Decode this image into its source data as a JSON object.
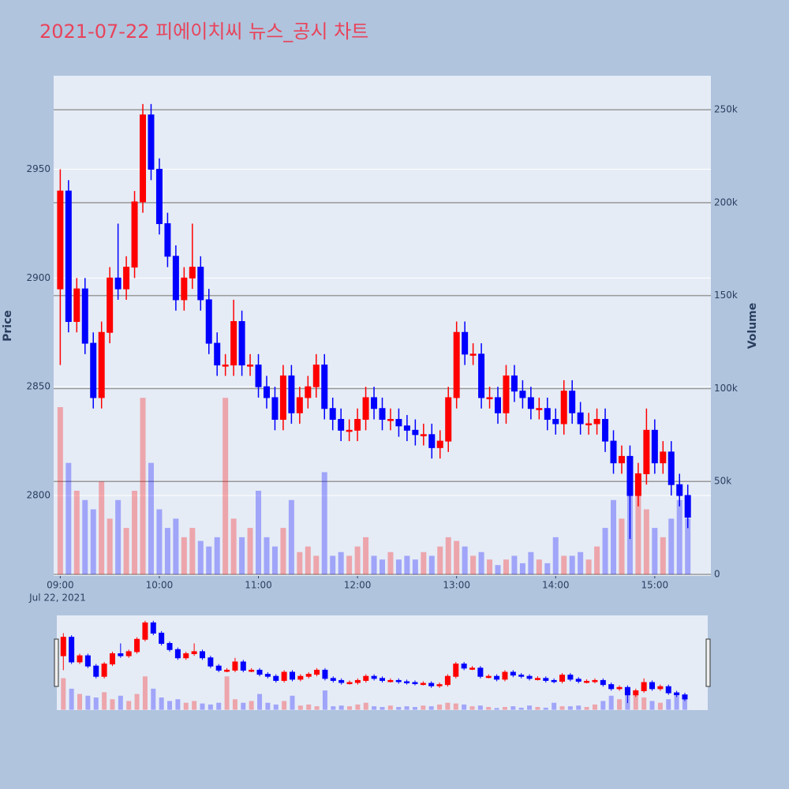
{
  "chart_data": {
    "type": "candlestick",
    "title": "2021-07-22 피에이치씨 뉴스_공시 차트",
    "y_label": "Price",
    "y2_label": "Volume",
    "x_date_label": "Jul 22, 2021",
    "increasing_color": "#ff0000",
    "decreasing_color": "#0000ff",
    "xlim": [
      "2021-07-22 08:56",
      "2021-07-22 15:34"
    ],
    "xticks": [
      {
        "value": "2021-07-22 09:00",
        "label": "09:00"
      },
      {
        "value": "2021-07-22 10:00",
        "label": "10:00"
      },
      {
        "value": "2021-07-22 11:00",
        "label": "11:00"
      },
      {
        "value": "2021-07-22 12:00",
        "label": "12:00"
      },
      {
        "value": "2021-07-22 13:00",
        "label": "13:00"
      },
      {
        "value": "2021-07-22 14:00",
        "label": "14:00"
      },
      {
        "value": "2021-07-22 15:00",
        "label": "15:00"
      }
    ],
    "ylim": [
      2763,
      2993
    ],
    "yticks": [
      2800,
      2850,
      2900,
      2950
    ],
    "y2lim": [
      -850,
      268300
    ],
    "y2ticks": [
      0,
      {
        "value": 50000,
        "label": "50k"
      },
      {
        "value": 100000,
        "label": "100k"
      },
      {
        "value": 150000,
        "label": "150k"
      },
      {
        "value": 200000,
        "label": "200k"
      },
      {
        "value": 250000,
        "label": "250k"
      }
    ],
    "x": [
      "2021-07-22 09:00",
      "2021-07-22 09:05",
      "2021-07-22 09:10",
      "2021-07-22 09:15",
      "2021-07-22 09:20",
      "2021-07-22 09:25",
      "2021-07-22 09:30",
      "2021-07-22 09:35",
      "2021-07-22 09:40",
      "2021-07-22 09:45",
      "2021-07-22 09:50",
      "2021-07-22 09:55",
      "2021-07-22 10:00",
      "2021-07-22 10:05",
      "2021-07-22 10:10",
      "2021-07-22 10:15",
      "2021-07-22 10:20",
      "2021-07-22 10:25",
      "2021-07-22 10:30",
      "2021-07-22 10:35",
      "2021-07-22 10:40",
      "2021-07-22 10:45",
      "2021-07-22 10:50",
      "2021-07-22 10:55",
      "2021-07-22 11:00",
      "2021-07-22 11:05",
      "2021-07-22 11:10",
      "2021-07-22 11:15",
      "2021-07-22 11:20",
      "2021-07-22 11:25",
      "2021-07-22 11:30",
      "2021-07-22 11:35",
      "2021-07-22 11:40",
      "2021-07-22 11:45",
      "2021-07-22 11:50",
      "2021-07-22 11:55",
      "2021-07-22 12:00",
      "2021-07-22 12:05",
      "2021-07-22 12:10",
      "2021-07-22 12:15",
      "2021-07-22 12:20",
      "2021-07-22 12:25",
      "2021-07-22 12:30",
      "2021-07-22 12:35",
      "2021-07-22 12:40",
      "2021-07-22 12:45",
      "2021-07-22 12:50",
      "2021-07-22 12:55",
      "2021-07-22 13:00",
      "2021-07-22 13:05",
      "2021-07-22 13:10",
      "2021-07-22 13:15",
      "2021-07-22 13:20",
      "2021-07-22 13:25",
      "2021-07-22 13:30",
      "2021-07-22 13:35",
      "2021-07-22 13:40",
      "2021-07-22 13:45",
      "2021-07-22 13:50",
      "2021-07-22 13:55",
      "2021-07-22 14:00",
      "2021-07-22 14:05",
      "2021-07-22 14:10",
      "2021-07-22 14:15",
      "2021-07-22 14:20",
      "2021-07-22 14:25",
      "2021-07-22 14:30",
      "2021-07-22 14:35",
      "2021-07-22 14:40",
      "2021-07-22 14:45",
      "2021-07-22 14:50",
      "2021-07-22 14:55",
      "2021-07-22 15:00",
      "2021-07-22 15:05",
      "2021-07-22 15:10",
      "2021-07-22 15:15",
      "2021-07-22 15:20"
    ],
    "open": [
      2895,
      2940,
      2880,
      2895,
      2870,
      2845,
      2875,
      2900,
      2895,
      2905,
      2935,
      2975,
      2950,
      2925,
      2910,
      2890,
      2900,
      2905,
      2890,
      2870,
      2860,
      2860,
      2880,
      2860,
      2860,
      2850,
      2845,
      2835,
      2855,
      2838,
      2845,
      2850,
      2860,
      2840,
      2835,
      2830,
      2830,
      2835,
      2845,
      2840,
      2835,
      2835,
      2832,
      2830,
      2828,
      2828,
      2822,
      2825,
      2845,
      2875,
      2865,
      2865,
      2845,
      2845,
      2838,
      2855,
      2848,
      2845,
      2840,
      2840,
      2835,
      2833,
      2848,
      2838,
      2833,
      2833,
      2835,
      2825,
      2815,
      2818,
      2800,
      2810,
      2830,
      2815,
      2820,
      2805,
      2800
    ],
    "high": [
      2950,
      2945,
      2900,
      2900,
      2875,
      2880,
      2905,
      2925,
      2910,
      2940,
      2980,
      2980,
      2955,
      2930,
      2915,
      2905,
      2925,
      2910,
      2895,
      2875,
      2865,
      2890,
      2885,
      2865,
      2865,
      2855,
      2850,
      2860,
      2860,
      2850,
      2855,
      2865,
      2865,
      2845,
      2840,
      2835,
      2840,
      2850,
      2850,
      2845,
      2840,
      2840,
      2837,
      2835,
      2833,
      2833,
      2830,
      2850,
      2880,
      2880,
      2870,
      2870,
      2850,
      2850,
      2860,
      2860,
      2853,
      2850,
      2845,
      2845,
      2840,
      2853,
      2853,
      2843,
      2838,
      2840,
      2840,
      2830,
      2823,
      2823,
      2815,
      2840,
      2835,
      2825,
      2825,
      2810,
      2805
    ],
    "low": [
      2860,
      2875,
      2875,
      2865,
      2840,
      2840,
      2870,
      2890,
      2890,
      2900,
      2930,
      2945,
      2920,
      2905,
      2885,
      2885,
      2895,
      2885,
      2865,
      2855,
      2855,
      2855,
      2855,
      2855,
      2845,
      2840,
      2830,
      2830,
      2833,
      2833,
      2840,
      2845,
      2835,
      2830,
      2825,
      2825,
      2825,
      2830,
      2835,
      2830,
      2830,
      2827,
      2825,
      2823,
      2823,
      2817,
      2817,
      2820,
      2840,
      2860,
      2860,
      2840,
      2840,
      2833,
      2833,
      2843,
      2840,
      2835,
      2835,
      2830,
      2828,
      2828,
      2833,
      2828,
      2828,
      2828,
      2820,
      2810,
      2810,
      2780,
      2795,
      2805,
      2810,
      2810,
      2800,
      2795,
      2785
    ],
    "close": [
      2940,
      2880,
      2895,
      2870,
      2845,
      2875,
      2900,
      2895,
      2905,
      2935,
      2975,
      2950,
      2925,
      2910,
      2890,
      2900,
      2905,
      2890,
      2870,
      2860,
      2860,
      2880,
      2860,
      2860,
      2850,
      2845,
      2835,
      2855,
      2838,
      2845,
      2850,
      2860,
      2840,
      2835,
      2830,
      2830,
      2835,
      2845,
      2840,
      2835,
      2835,
      2832,
      2830,
      2828,
      2828,
      2822,
      2825,
      2845,
      2875,
      2865,
      2865,
      2845,
      2845,
      2838,
      2855,
      2848,
      2845,
      2840,
      2840,
      2835,
      2833,
      2848,
      2838,
      2833,
      2833,
      2835,
      2825,
      2815,
      2818,
      2800,
      2810,
      2830,
      2815,
      2820,
      2805,
      2800,
      2790
    ],
    "volume": [
      90000,
      60000,
      45000,
      40000,
      35000,
      50000,
      30000,
      40000,
      25000,
      45000,
      95000,
      60000,
      35000,
      25000,
      30000,
      20000,
      25000,
      18000,
      15000,
      20000,
      95000,
      30000,
      20000,
      25000,
      45000,
      20000,
      15000,
      25000,
      40000,
      12000,
      15000,
      10000,
      55000,
      10000,
      12000,
      10000,
      15000,
      20000,
      10000,
      8000,
      12000,
      8000,
      10000,
      8000,
      12000,
      10000,
      15000,
      20000,
      18000,
      15000,
      10000,
      12000,
      8000,
      5000,
      8000,
      10000,
      6000,
      12000,
      8000,
      6000,
      20000,
      10000,
      10000,
      12000,
      8000,
      15000,
      25000,
      40000,
      30000,
      60000,
      45000,
      35000,
      25000,
      20000,
      30000,
      40000,
      30000
    ]
  }
}
